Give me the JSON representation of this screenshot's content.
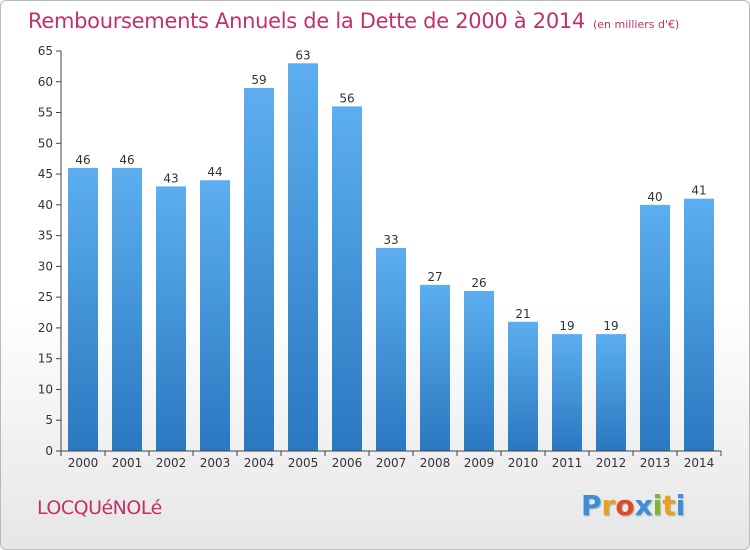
{
  "chart_data": {
    "type": "bar",
    "title": "Remboursements Annuels de la Dette de 2000 à 2014",
    "subtitle": "(en milliers d'€)",
    "categories": [
      "2000",
      "2001",
      "2002",
      "2003",
      "2004",
      "2005",
      "2006",
      "2007",
      "2008",
      "2009",
      "2010",
      "2011",
      "2012",
      "2013",
      "2014"
    ],
    "values": [
      46,
      46,
      43,
      44,
      59,
      63,
      56,
      33,
      27,
      26,
      21,
      19,
      19,
      40,
      41
    ],
    "ylim": [
      0,
      65
    ],
    "yticks": [
      0,
      5,
      10,
      15,
      20,
      25,
      30,
      35,
      40,
      45,
      50,
      55,
      60,
      65
    ],
    "grid": false,
    "bar_color": "#4a9be0",
    "title_color": "#c0306a"
  },
  "commune": "LOCQUéNOLé",
  "logo": {
    "letters": [
      "P",
      "r",
      "o",
      "x",
      "i",
      "t",
      "i"
    ],
    "colors": [
      "#3a8fd6",
      "#e8a020",
      "#e04a2a",
      "#3a8fd6",
      "#7ab82e",
      "#e8a020",
      "#3a8fd6"
    ]
  }
}
